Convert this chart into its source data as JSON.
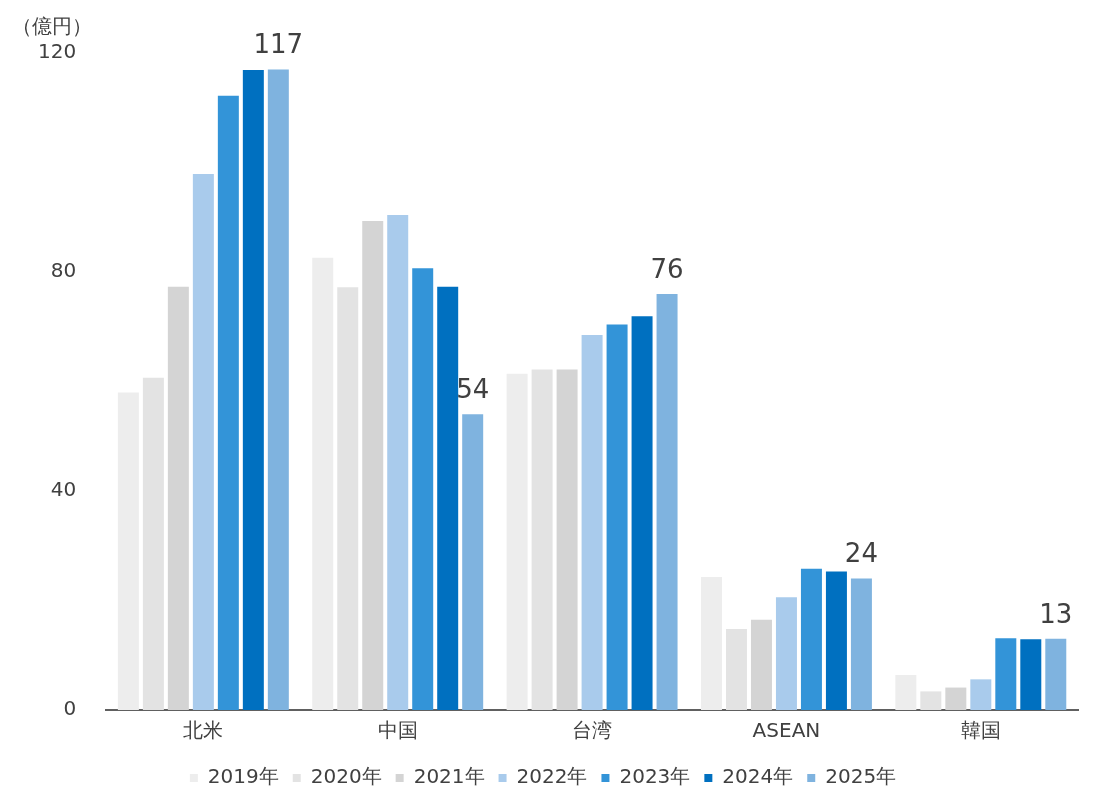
{
  "chart_data": {
    "type": "bar",
    "ylabel": "（億円）",
    "categories": [
      "北米",
      "中国",
      "台湾",
      "ASEAN",
      "韓国"
    ],
    "ylim": [
      0,
      120
    ],
    "yticks": [
      0,
      40,
      80,
      120
    ],
    "grid": false,
    "legend": "bottom",
    "series": [
      {
        "name": "2019年",
        "color": "#ededed",
        "values": [
          58,
          82.6,
          61.4,
          24.3,
          6.4
        ]
      },
      {
        "name": "2020年",
        "color": "#e3e3e3",
        "values": [
          60.7,
          77.2,
          62.2,
          14.8,
          3.4
        ]
      },
      {
        "name": "2021年",
        "color": "#d4d4d4",
        "values": [
          77.3,
          89.3,
          62.2,
          16.5,
          4.1
        ]
      },
      {
        "name": "2022年",
        "color": "#a9cbec",
        "values": [
          97.9,
          90.4,
          68.5,
          20.6,
          5.6
        ]
      },
      {
        "name": "2023年",
        "color": "#3394d8",
        "values": [
          112.2,
          80.7,
          70.4,
          25.8,
          13.1
        ]
      },
      {
        "name": "2024年",
        "color": "#0070c0",
        "values": [
          116.9,
          77.3,
          71.9,
          25.3,
          12.9
        ]
      },
      {
        "name": "2025年",
        "color": "#7fb3df",
        "values": [
          117,
          54,
          76,
          24,
          13
        ],
        "value_labels": [
          "117",
          "54",
          "76",
          "24",
          "13"
        ]
      }
    ]
  }
}
